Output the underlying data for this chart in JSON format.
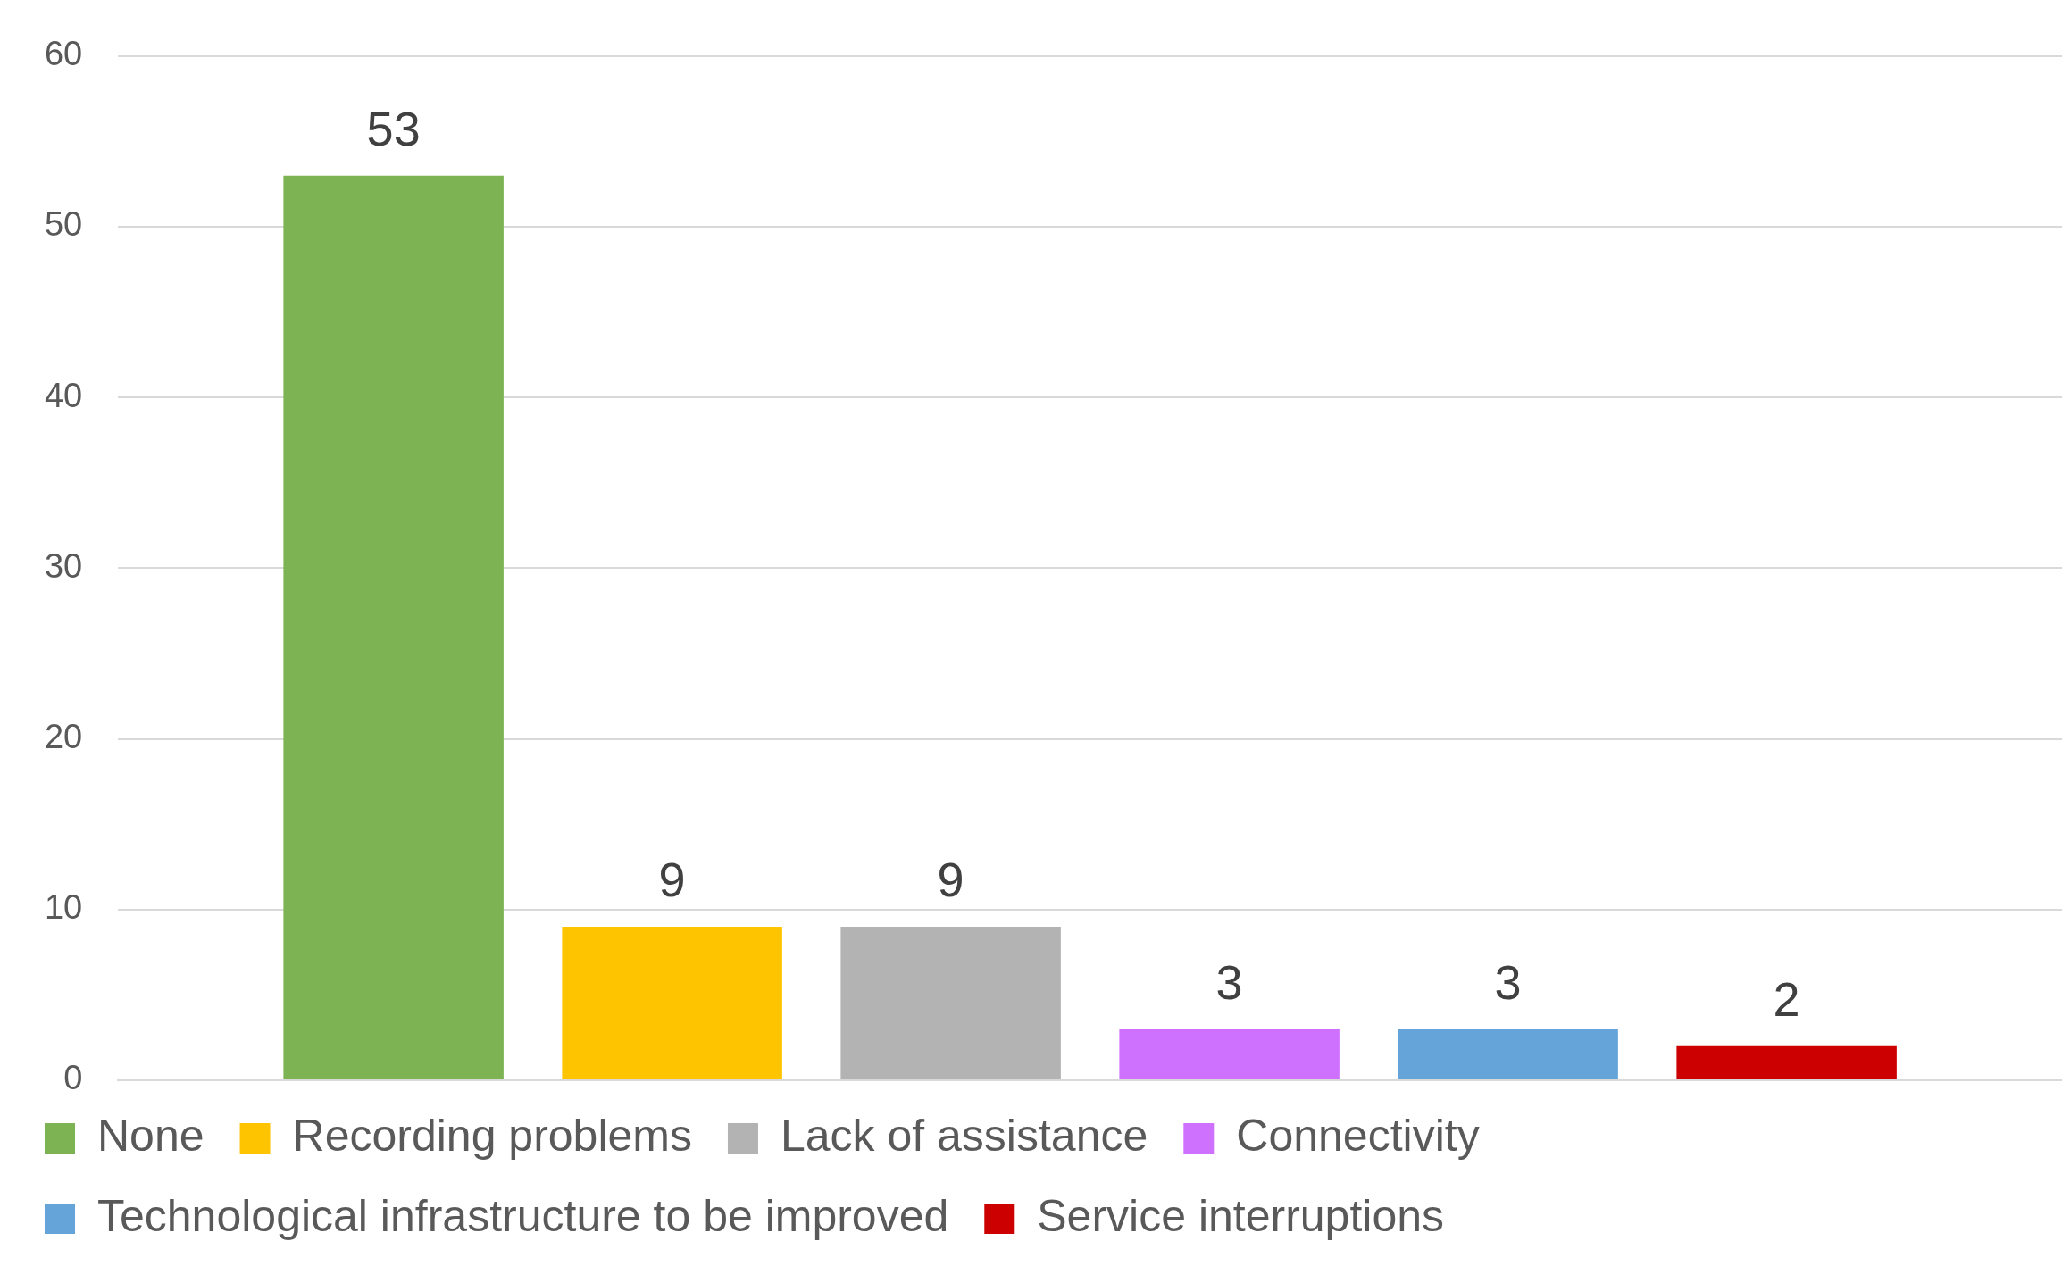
{
  "chart_data": {
    "type": "bar",
    "categories": [
      null
    ],
    "series": [
      {
        "name": "None",
        "color": "#7db353",
        "values": [
          53
        ]
      },
      {
        "name": "Recording problems",
        "color": "#ffc400",
        "values": [
          9
        ]
      },
      {
        "name": "Lack of assistance",
        "color": "#b3b3b3",
        "values": [
          9
        ]
      },
      {
        "name": "Connectivity",
        "color": "#cf71ff",
        "values": [
          3
        ]
      },
      {
        "name": "Technological infrastructure to be improved",
        "color": "#64a4d9",
        "values": [
          3
        ]
      },
      {
        "name": "Service interruptions",
        "color": "#cc0000",
        "values": [
          2
        ]
      }
    ],
    "ylim": [
      0,
      60
    ],
    "yticks": [
      0,
      10,
      20,
      30,
      40,
      50,
      60
    ],
    "grid": "y",
    "legend": "bottom",
    "tick_labels": "y",
    "data_labels": true
  }
}
